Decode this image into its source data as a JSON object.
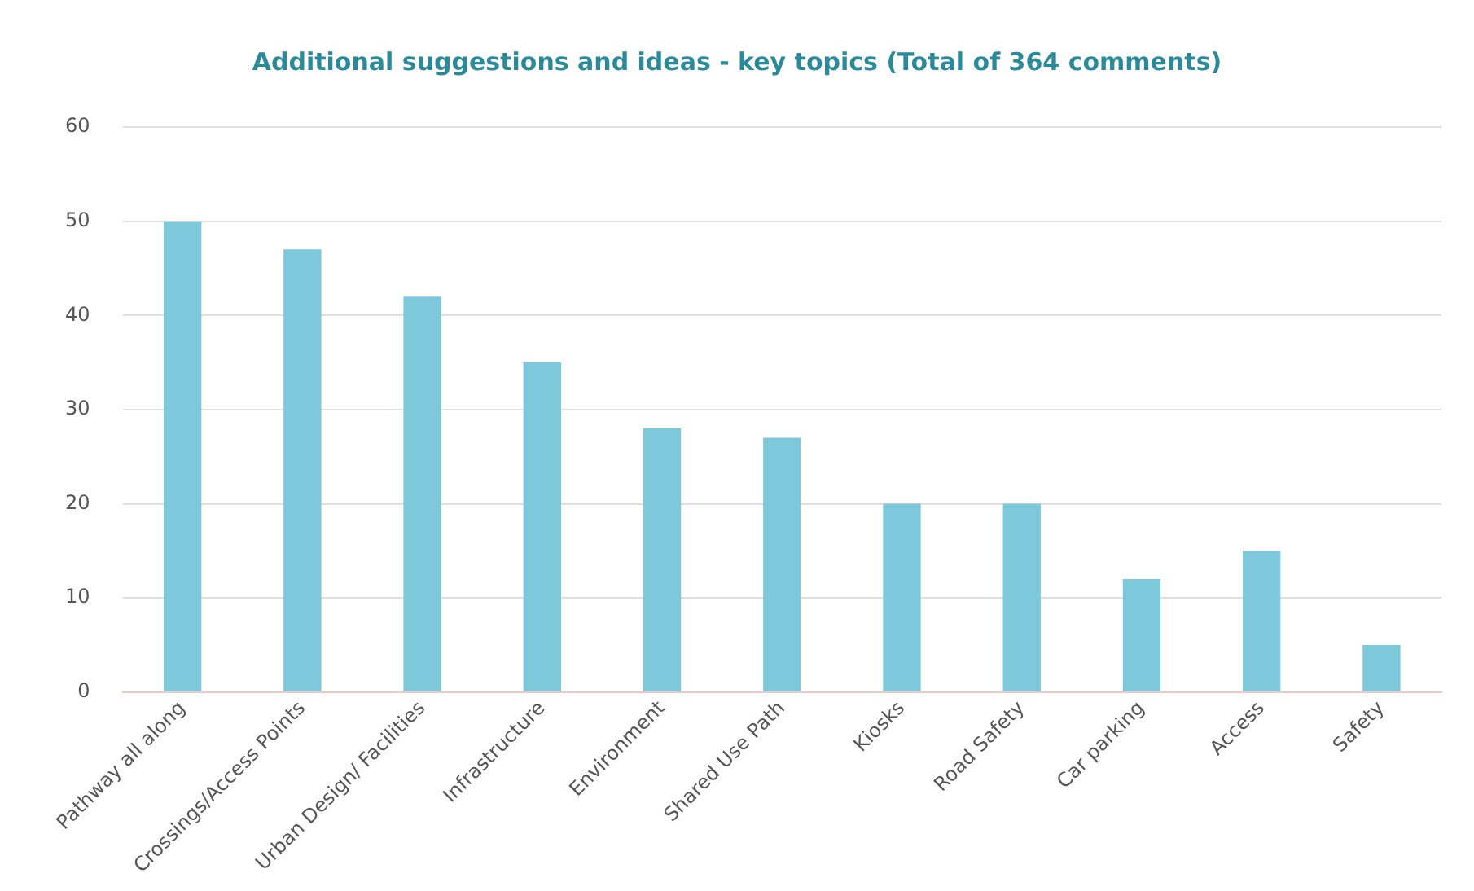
{
  "chart_data": {
    "type": "bar",
    "title": "Additional suggestions and ideas - key topics (Total of 364 comments)",
    "categories": [
      "Pathway all along",
      "Crossings/Access Points",
      "Urban Design/ Facilities",
      "Infrastructure",
      "Environment",
      "Shared Use Path",
      "Kiosks",
      "Road Safety",
      "Car parking",
      "Access",
      "Safety"
    ],
    "values": [
      50,
      47,
      42,
      35,
      28,
      27,
      20,
      20,
      12,
      15,
      5
    ],
    "color": "#7ec8dc",
    "ylim": [
      0,
      60
    ],
    "yticks": [
      0,
      10,
      20,
      30,
      40,
      50,
      60
    ],
    "grid": "y"
  }
}
